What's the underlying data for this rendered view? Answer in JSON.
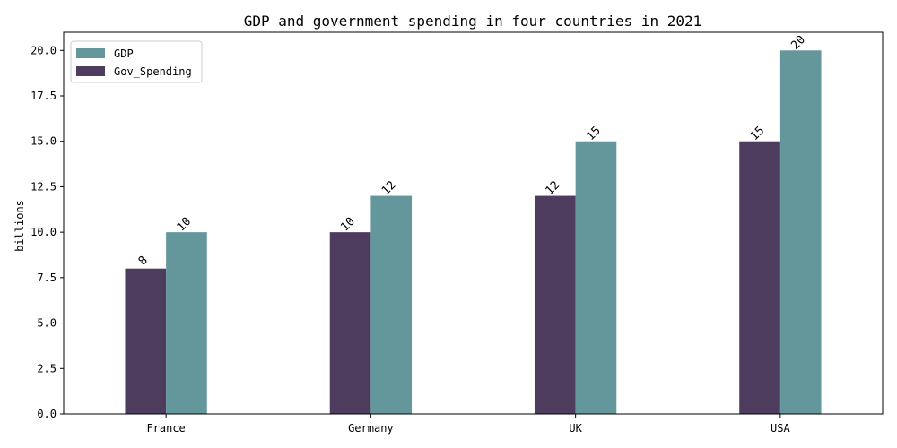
{
  "chart_data": {
    "type": "bar",
    "title": "GDP and government spending in four countries in 2021",
    "xlabel": "",
    "ylabel": "billions",
    "categories": [
      "France",
      "Germany",
      "UK",
      "USA"
    ],
    "series": [
      {
        "name": "Gov_Spending",
        "values": [
          8,
          10,
          12,
          15
        ],
        "color": "#4d3c5e"
      },
      {
        "name": "GDP",
        "values": [
          10,
          12,
          15,
          20
        ],
        "color": "#64979b"
      }
    ],
    "ylim": [
      0,
      21
    ],
    "yticks": [
      "0.0",
      "2.5",
      "5.0",
      "7.5",
      "10.0",
      "12.5",
      "15.0",
      "17.5",
      "20.0"
    ],
    "legend": {
      "position": "top-left",
      "entries": [
        "GDP",
        "Gov_Spending"
      ]
    },
    "grid": false,
    "data_labels": true
  }
}
